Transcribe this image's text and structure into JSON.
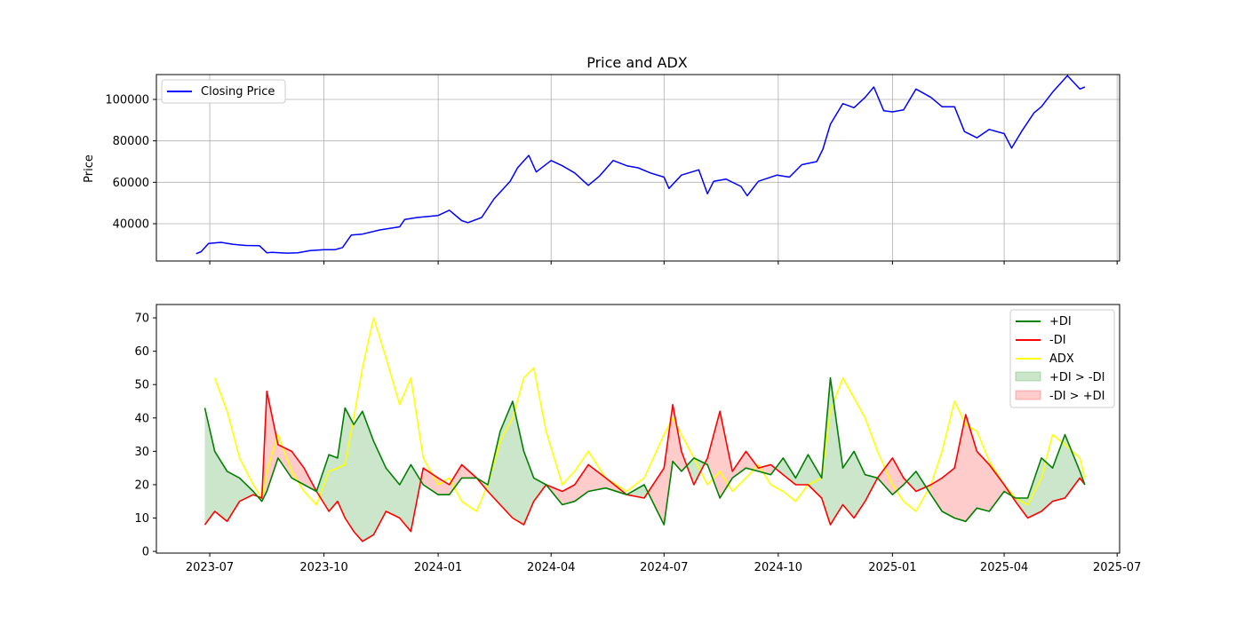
{
  "chart_data": [
    {
      "type": "line",
      "title": "Price and ADX",
      "xlabel": "",
      "ylabel": "Price",
      "ylim": [
        22000,
        112000
      ],
      "xlim": [
        "2023-05-19",
        "2025-07-03"
      ],
      "yticks": [
        "40000",
        "60000",
        "80000",
        "100000"
      ],
      "ytick_values": [
        40000,
        60000,
        80000,
        100000
      ],
      "grid": true,
      "legend": "top-left",
      "series": [
        {
          "name": "Closing Price",
          "color": "#0000ff",
          "x": [
            "2023-06-20",
            "2023-06-24",
            "2023-06-30",
            "2023-07-10",
            "2023-07-20",
            "2023-07-30",
            "2023-08-10",
            "2023-08-16",
            "2023-08-20",
            "2023-09-01",
            "2023-09-10",
            "2023-09-20",
            "2023-10-01",
            "2023-10-10",
            "2023-10-16",
            "2023-10-23",
            "2023-11-01",
            "2023-11-15",
            "2023-12-01",
            "2023-12-05",
            "2023-12-15",
            "2024-01-01",
            "2024-01-10",
            "2024-01-20",
            "2024-01-25",
            "2024-02-05",
            "2024-02-15",
            "2024-02-28",
            "2024-03-05",
            "2024-03-14",
            "2024-03-20",
            "2024-04-01",
            "2024-04-10",
            "2024-04-20",
            "2024-05-01",
            "2024-05-10",
            "2024-05-21",
            "2024-06-01",
            "2024-06-10",
            "2024-06-20",
            "2024-07-01",
            "2024-07-05",
            "2024-07-15",
            "2024-07-29",
            "2024-08-05",
            "2024-08-10",
            "2024-08-20",
            "2024-09-01",
            "2024-09-06",
            "2024-09-15",
            "2024-09-30",
            "2024-10-10",
            "2024-10-20",
            "2024-11-01",
            "2024-11-06",
            "2024-11-12",
            "2024-11-22",
            "2024-12-01",
            "2024-12-10",
            "2024-12-17",
            "2024-12-25",
            "2025-01-01",
            "2025-01-10",
            "2025-01-20",
            "2025-02-01",
            "2025-02-10",
            "2025-02-20",
            "2025-02-28",
            "2025-03-10",
            "2025-03-20",
            "2025-04-01",
            "2025-04-07",
            "2025-04-15",
            "2025-04-25",
            "2025-05-01",
            "2025-05-10",
            "2025-05-22",
            "2025-06-01",
            "2025-06-05"
          ],
          "values": [
            25500,
            26500,
            30500,
            31000,
            30000,
            29500,
            29400,
            26000,
            26200,
            25800,
            26000,
            27000,
            27500,
            27500,
            28500,
            34500,
            35000,
            37000,
            38500,
            42000,
            43000,
            44000,
            46500,
            41500,
            40500,
            43000,
            52000,
            60500,
            67000,
            73000,
            65000,
            70500,
            68000,
            64500,
            58500,
            63000,
            70500,
            68000,
            67000,
            64500,
            62500,
            57000,
            63500,
            66000,
            54500,
            60500,
            61500,
            58000,
            53500,
            60500,
            63500,
            62500,
            68500,
            70000,
            76000,
            88000,
            98000,
            96000,
            101000,
            106000,
            94500,
            94000,
            95000,
            105000,
            101000,
            96500,
            96500,
            84500,
            81500,
            85500,
            83500,
            76500,
            84500,
            93500,
            96500,
            103500,
            111500,
            105000,
            106000
          ]
        }
      ]
    },
    {
      "type": "line",
      "title": "",
      "xlabel": "",
      "ylabel": "",
      "ylim": [
        -0.5,
        74
      ],
      "xlim": [
        "2023-05-19",
        "2025-07-03"
      ],
      "yticks": [
        "0",
        "10",
        "20",
        "30",
        "40",
        "50",
        "60",
        "70"
      ],
      "ytick_values": [
        0,
        10,
        20,
        30,
        40,
        50,
        60,
        70
      ],
      "xticks": [
        "2023-07",
        "2023-10",
        "2024-01",
        "2024-04",
        "2024-07",
        "2024-10",
        "2025-01",
        "2025-04",
        "2025-07"
      ],
      "xtick_dates": [
        "2023-07-01",
        "2023-10-01",
        "2024-01-01",
        "2024-04-01",
        "2024-07-01",
        "2024-10-01",
        "2025-01-01",
        "2025-04-01",
        "2025-07-01"
      ],
      "grid": false,
      "legend": "top-right",
      "x": [
        "2023-06-27",
        "2023-07-05",
        "2023-07-15",
        "2023-07-25",
        "2023-08-05",
        "2023-08-12",
        "2023-08-16",
        "2023-08-25",
        "2023-09-05",
        "2023-09-15",
        "2023-09-25",
        "2023-10-05",
        "2023-10-12",
        "2023-10-18",
        "2023-10-25",
        "2023-11-01",
        "2023-11-10",
        "2023-11-20",
        "2023-12-01",
        "2023-12-10",
        "2023-12-20",
        "2024-01-01",
        "2024-01-10",
        "2024-01-20",
        "2024-02-01",
        "2024-02-10",
        "2024-02-20",
        "2024-03-01",
        "2024-03-10",
        "2024-03-18",
        "2024-03-28",
        "2024-04-10",
        "2024-04-20",
        "2024-05-01",
        "2024-05-15",
        "2024-06-01",
        "2024-06-15",
        "2024-07-01",
        "2024-07-08",
        "2024-07-15",
        "2024-07-25",
        "2024-08-05",
        "2024-08-15",
        "2024-08-25",
        "2024-09-05",
        "2024-09-15",
        "2024-09-25",
        "2024-10-05",
        "2024-10-15",
        "2024-10-25",
        "2024-11-05",
        "2024-11-12",
        "2024-11-22",
        "2024-12-01",
        "2024-12-10",
        "2024-12-20",
        "2025-01-01",
        "2025-01-10",
        "2025-01-20",
        "2025-02-01",
        "2025-02-10",
        "2025-02-20",
        "2025-03-01",
        "2025-03-10",
        "2025-03-20",
        "2025-04-01",
        "2025-04-10",
        "2025-04-20",
        "2025-05-01",
        "2025-05-10",
        "2025-05-20",
        "2025-06-01",
        "2025-06-05"
      ],
      "series": [
        {
          "name": "+DI",
          "color": "#008000",
          "values": [
            43,
            30,
            24,
            22,
            18,
            15,
            18,
            28,
            22,
            20,
            18,
            29,
            28,
            43,
            38,
            42,
            33,
            25,
            20,
            26,
            20,
            17,
            17,
            22,
            22,
            20,
            36,
            45,
            30,
            22,
            20,
            14,
            15,
            18,
            19,
            17,
            20,
            8,
            27,
            24,
            28,
            26,
            16,
            22,
            25,
            24,
            23,
            28,
            22,
            29,
            22,
            52,
            25,
            30,
            23,
            22,
            17,
            20,
            24,
            17,
            12,
            10,
            9,
            13,
            12,
            18,
            16,
            16,
            28,
            25,
            35,
            24,
            20
          ]
        },
        {
          "name": "-DI",
          "color": "#ff0000",
          "values": [
            8,
            12,
            9,
            15,
            17,
            16,
            48,
            32,
            30,
            25,
            18,
            12,
            15,
            10,
            6,
            3,
            5,
            12,
            10,
            6,
            25,
            22,
            20,
            26,
            22,
            18,
            14,
            10,
            8,
            15,
            20,
            18,
            20,
            26,
            22,
            17,
            16,
            25,
            44,
            30,
            20,
            28,
            42,
            24,
            30,
            25,
            26,
            23,
            20,
            20,
            16,
            8,
            14,
            10,
            15,
            22,
            28,
            22,
            18,
            20,
            22,
            25,
            41,
            30,
            26,
            20,
            15,
            10,
            12,
            15,
            16,
            22,
            20
          ]
        },
        {
          "name": "ADX",
          "color": "#ffff00",
          "values": [
            null,
            52,
            42,
            28,
            20,
            16,
            24,
            35,
            24,
            18,
            14,
            24,
            25,
            26,
            40,
            55,
            70,
            58,
            44,
            52,
            28,
            20,
            22,
            15,
            12,
            20,
            33,
            40,
            52,
            55,
            36,
            20,
            24,
            30,
            22,
            18,
            22,
            35,
            40,
            35,
            28,
            20,
            24,
            18,
            22,
            26,
            20,
            18,
            15,
            20,
            22,
            42,
            52,
            46,
            40,
            30,
            20,
            15,
            12,
            20,
            30,
            45,
            38,
            36,
            27,
            20,
            16,
            14,
            22,
            35,
            32,
            28,
            22
          ]
        }
      ],
      "fills": [
        {
          "name": "+DI > -DI",
          "color": "#008000"
        },
        {
          "name": "-DI > +DI",
          "color": "#ff0000"
        }
      ]
    }
  ]
}
